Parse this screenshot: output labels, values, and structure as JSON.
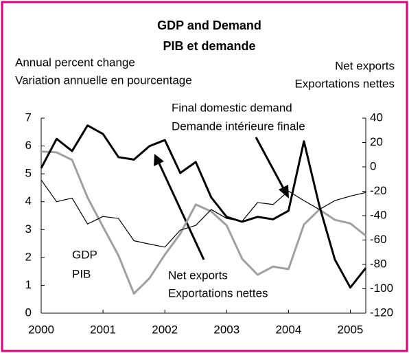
{
  "chart_data": {
    "type": "line",
    "title": "GDP and Demand",
    "subtitle": "PIB et demande",
    "y_label": [
      "Annual percent change",
      "Variation annuelle en pourcentage"
    ],
    "y2_label": [
      "Net exports",
      "Exportations nettes"
    ],
    "x": [
      2000,
      2000.25,
      2000.5,
      2000.75,
      2001,
      2001.25,
      2001.5,
      2001.75,
      2002,
      2002.25,
      2002.5,
      2002.75,
      2003,
      2003.25,
      2003.5,
      2003.75,
      2004,
      2004.25,
      2004.5,
      2004.75,
      2005,
      2005.25
    ],
    "xlim": [
      2000,
      2005.25
    ],
    "xticks": [
      2000,
      2001,
      2002,
      2003,
      2004,
      2005
    ],
    "ylim": [
      0,
      7
    ],
    "yticks": [
      0,
      1,
      2,
      3,
      4,
      5,
      6,
      7
    ],
    "y2lim": [
      -120,
      40
    ],
    "y2ticks": [
      -120,
      -100,
      -80,
      -60,
      -40,
      -20,
      0,
      20,
      40
    ],
    "series": [
      {
        "name": "GDP",
        "label": [
          "GDP",
          "PIB"
        ],
        "color": "#a0a0a0",
        "width": 3,
        "values": [
          5.8,
          5.77,
          5.5,
          4.15,
          3.1,
          2.07,
          0.7,
          1.25,
          2.1,
          2.85,
          3.9,
          3.65,
          3.15,
          1.95,
          1.38,
          1.67,
          1.58,
          3.18,
          3.72,
          3.35,
          3.22,
          2.78
        ]
      },
      {
        "name": "Final domestic demand",
        "label": [
          "Final domestic demand",
          "Demande intérieure finale"
        ],
        "color": "#000000",
        "width": 1.2,
        "values": [
          4.78,
          4.0,
          4.13,
          3.2,
          3.47,
          3.4,
          2.6,
          2.48,
          2.37,
          2.98,
          3.15,
          3.72,
          3.4,
          3.3,
          3.97,
          3.9,
          4.38,
          4.04,
          3.72,
          4.04,
          4.2,
          4.33
        ]
      },
      {
        "name": "Net exports",
        "label": [
          "Net exports",
          "Exportations nettes"
        ],
        "color": "#000000",
        "width": 3,
        "axis": "y2",
        "values": [
          -1,
          23,
          13,
          34,
          27,
          8,
          6,
          17,
          22,
          -5,
          4,
          -25,
          -41,
          -45,
          -41,
          -43,
          -36,
          21,
          -32,
          -76,
          -99,
          -83
        ]
      }
    ],
    "border_color": "#e0007a"
  }
}
